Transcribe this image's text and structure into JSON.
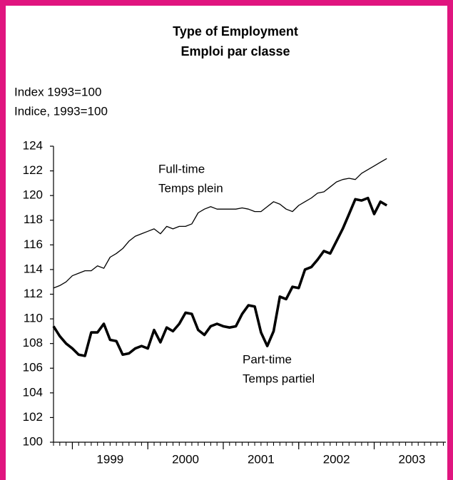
{
  "chart_data": {
    "type": "line",
    "title": [
      "Type of Employment",
      "Emploi par classe"
    ],
    "y_label": [
      "Index 1993=100",
      "Indice, 1993=100"
    ],
    "x": [
      1998.75,
      1998.833,
      1998.917,
      1999.0,
      1999.083,
      1999.167,
      1999.25,
      1999.333,
      1999.417,
      1999.5,
      1999.583,
      1999.667,
      1999.75,
      1999.833,
      1999.917,
      2000.0,
      2000.083,
      2000.167,
      2000.25,
      2000.333,
      2000.417,
      2000.5,
      2000.583,
      2000.667,
      2000.75,
      2000.833,
      2000.917,
      2001.0,
      2001.083,
      2001.167,
      2001.25,
      2001.333,
      2001.417,
      2001.5,
      2001.583,
      2001.667,
      2001.75,
      2001.833,
      2001.917,
      2002.0,
      2002.083,
      2002.167,
      2002.25,
      2002.333,
      2002.417,
      2002.5,
      2002.583,
      2002.667,
      2002.75,
      2002.833,
      2002.917,
      2003.0,
      2003.083,
      2003.167
    ],
    "series": [
      {
        "name": [
          "Full-time",
          "Temps plein"
        ],
        "color": "#000000",
        "values": [
          112.5,
          112.7,
          113.0,
          113.5,
          113.7,
          113.9,
          113.9,
          114.3,
          114.1,
          115.0,
          115.3,
          115.7,
          116.3,
          116.7,
          116.9,
          117.1,
          117.3,
          116.9,
          117.5,
          117.3,
          117.5,
          117.5,
          117.7,
          118.6,
          118.9,
          119.1,
          118.9,
          118.9,
          118.9,
          118.9,
          119.0,
          118.9,
          118.7,
          118.7,
          119.1,
          119.5,
          119.3,
          118.9,
          118.7,
          119.2,
          119.5,
          119.8,
          120.2,
          120.3,
          120.7,
          121.1,
          121.3,
          121.4,
          121.3,
          121.8,
          122.1,
          122.4,
          122.7,
          123.0
        ]
      },
      {
        "name": [
          "Part-time",
          "Temps partiel"
        ],
        "color": "#000000",
        "values": [
          109.4,
          108.6,
          108.0,
          107.6,
          107.1,
          107.0,
          108.9,
          108.9,
          109.6,
          108.3,
          108.2,
          107.1,
          107.2,
          107.6,
          107.8,
          107.6,
          109.1,
          108.1,
          109.3,
          109.0,
          109.6,
          110.5,
          110.4,
          109.1,
          108.7,
          109.4,
          109.6,
          109.4,
          109.3,
          109.4,
          110.4,
          111.1,
          111.0,
          108.9,
          107.8,
          109.0,
          111.8,
          111.6,
          112.6,
          112.5,
          114.0,
          114.2,
          114.8,
          115.5,
          115.3,
          116.3,
          117.3,
          118.5,
          119.7,
          119.6,
          119.8,
          118.5,
          119.5,
          119.2
        ]
      }
    ],
    "xlim": [
      1998.75,
      2003.95
    ],
    "xticks": [
      1999,
      2000,
      2001,
      2002,
      2003
    ],
    "year_labels": [
      {
        "value": 1999.5,
        "label": "1999"
      },
      {
        "value": 2000.5,
        "label": "2000"
      },
      {
        "value": 2001.5,
        "label": "2001"
      },
      {
        "value": 2002.5,
        "label": "2002"
      },
      {
        "value": 2003.5,
        "label": "2003"
      }
    ],
    "ylim": [
      100,
      124
    ],
    "yticks": [
      100,
      102,
      104,
      106,
      108,
      110,
      112,
      114,
      116,
      118,
      120,
      122,
      124
    ],
    "grid": false
  }
}
